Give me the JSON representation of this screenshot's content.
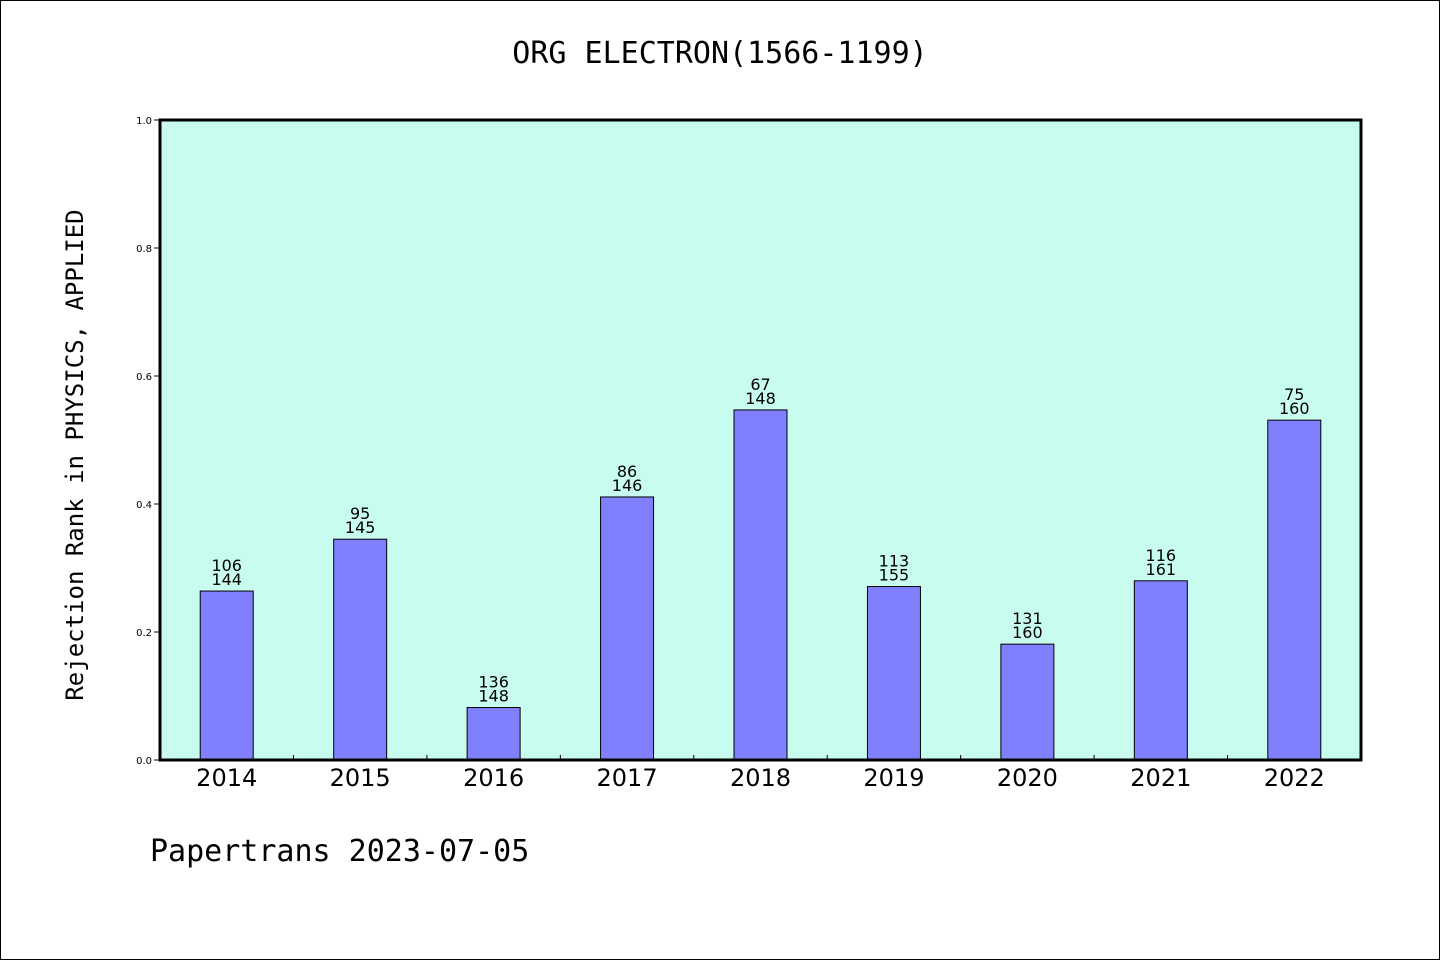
{
  "chart_data": {
    "type": "bar",
    "title": "ORG ELECTRON(1566-1199)",
    "ylabel": "Rejection Rank in PHYSICS, APPLIED",
    "xlabel": "",
    "ylim": [
      0.0,
      1.0
    ],
    "yticks": [
      "0.0",
      "0.2",
      "0.4",
      "0.6",
      "0.8",
      "1.0"
    ],
    "categories": [
      "2014",
      "2015",
      "2016",
      "2017",
      "2018",
      "2019",
      "2020",
      "2021",
      "2022"
    ],
    "values": [
      0.264,
      0.345,
      0.082,
      0.411,
      0.547,
      0.271,
      0.181,
      0.28,
      0.531
    ],
    "rank": [
      "106",
      "95",
      "136",
      "86",
      "67",
      "113",
      "131",
      "116",
      "75"
    ],
    "total": [
      "144",
      "145",
      "148",
      "146",
      "148",
      "155",
      "160",
      "161",
      "160"
    ],
    "plot_background": "#c8fcee",
    "bar_color": "#8080ff",
    "grid": false
  },
  "footer": "Papertrans 2023-07-05"
}
